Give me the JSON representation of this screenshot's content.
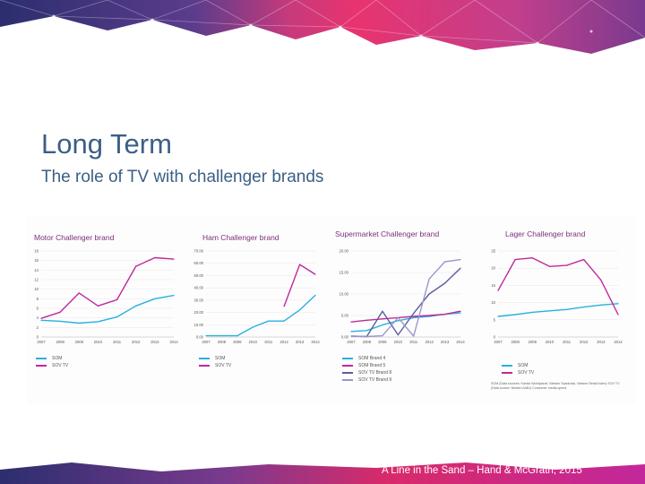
{
  "slide": {
    "title": "Long Term",
    "subtitle": "The role of TV with challenger brands",
    "footer": "A Line in the Sand – Hand & McGrath, 2015",
    "source_note": "SOM (Data sources: Kantar Worldpanel, Nielsen Scantrack, Nielsen Retail Index) SOV TV (Data source: Nielsen AdEx) Consumer media spend",
    "colors": {
      "som": "#2ab0de",
      "sov": "#c2289a",
      "brand2": "#5a5f9e",
      "brand3": "#9a97c9",
      "banner_top": "#2c2e6e",
      "banner_pink": "#e8336f",
      "footer_band": "#d92a6a"
    }
  },
  "chart_data": [
    {
      "type": "line",
      "title": "Motor Challenger brand",
      "x": [
        "2007",
        "2008",
        "2009",
        "2010",
        "2011",
        "2012",
        "2013",
        "2014"
      ],
      "ylim": [
        0,
        18
      ],
      "yticks": [
        "0",
        "2",
        "4",
        "6",
        "8",
        "10",
        "12",
        "14",
        "16",
        "18"
      ],
      "series": [
        {
          "name": "SOM",
          "color": "#2ab0de",
          "values": [
            3.5,
            3.3,
            2.9,
            3.2,
            4.2,
            6.5,
            8.0,
            8.7
          ]
        },
        {
          "name": "SOV TV",
          "color": "#c2289a",
          "values": [
            3.9,
            5.2,
            9.2,
            6.5,
            7.8,
            14.8,
            16.6,
            16.3
          ]
        }
      ]
    },
    {
      "type": "line",
      "title": "Ham Challenger brand",
      "x": [
        "2007",
        "2008",
        "2009",
        "2010",
        "2011",
        "2012",
        "2013",
        "2014"
      ],
      "ylim": [
        0,
        70
      ],
      "yticks": [
        "0.00",
        "10.00",
        "20.00",
        "30.00",
        "40.00",
        "50.00",
        "60.00",
        "70.00"
      ],
      "series": [
        {
          "name": "SOM",
          "color": "#2ab0de",
          "values": [
            1,
            1,
            1,
            8,
            13,
            13,
            22,
            34
          ]
        },
        {
          "name": "SOV TV",
          "color": "#c2289a",
          "values": [
            null,
            null,
            null,
            null,
            null,
            25,
            59,
            51
          ]
        }
      ]
    },
    {
      "type": "line",
      "title": "Supermarket Challenger brand",
      "x": [
        "2007",
        "2008",
        "2009",
        "2010",
        "2011",
        "2012",
        "2013",
        "2014"
      ],
      "ylim": [
        0,
        20
      ],
      "yticks": [
        "0.00",
        "5.00",
        "10.00",
        "15.00",
        "20.00"
      ],
      "series": [
        {
          "name": "SOM Brand 4",
          "color": "#2ab0de",
          "values": [
            1.3,
            1.5,
            2.8,
            3.8,
            4.5,
            4.8,
            5.3,
            5.6
          ]
        },
        {
          "name": "SOM Brand 5",
          "color": "#c2289a",
          "values": [
            3.5,
            3.9,
            4.2,
            4.5,
            4.8,
            5.0,
            5.3,
            6.0
          ]
        },
        {
          "name": "SOV TV Brand 8",
          "color": "#5a5f9e",
          "values": [
            0.2,
            0.1,
            6.0,
            0.5,
            5.5,
            10.0,
            12.5,
            16.0
          ]
        },
        {
          "name": "SOV TV Brand 9",
          "color": "#9a97c9",
          "values": [
            0.2,
            0.1,
            0.3,
            4.5,
            0.2,
            13.5,
            17.5,
            18.0
          ]
        }
      ]
    },
    {
      "type": "line",
      "title": "Lager Challenger brand",
      "x": [
        "2007",
        "2008",
        "2009",
        "2010",
        "2011",
        "2012",
        "2013",
        "2014"
      ],
      "ylim": [
        0,
        25
      ],
      "yticks": [
        "0",
        "5",
        "10",
        "15",
        "20",
        "25"
      ],
      "series": [
        {
          "name": "SOM",
          "color": "#2ab0de",
          "values": [
            6.0,
            6.5,
            7.2,
            7.6,
            8.0,
            8.7,
            9.3,
            9.7
          ]
        },
        {
          "name": "SOV TV",
          "color": "#c2289a",
          "values": [
            13.5,
            22.5,
            23.0,
            20.5,
            20.8,
            22.5,
            16.5,
            6.5
          ]
        }
      ]
    }
  ]
}
